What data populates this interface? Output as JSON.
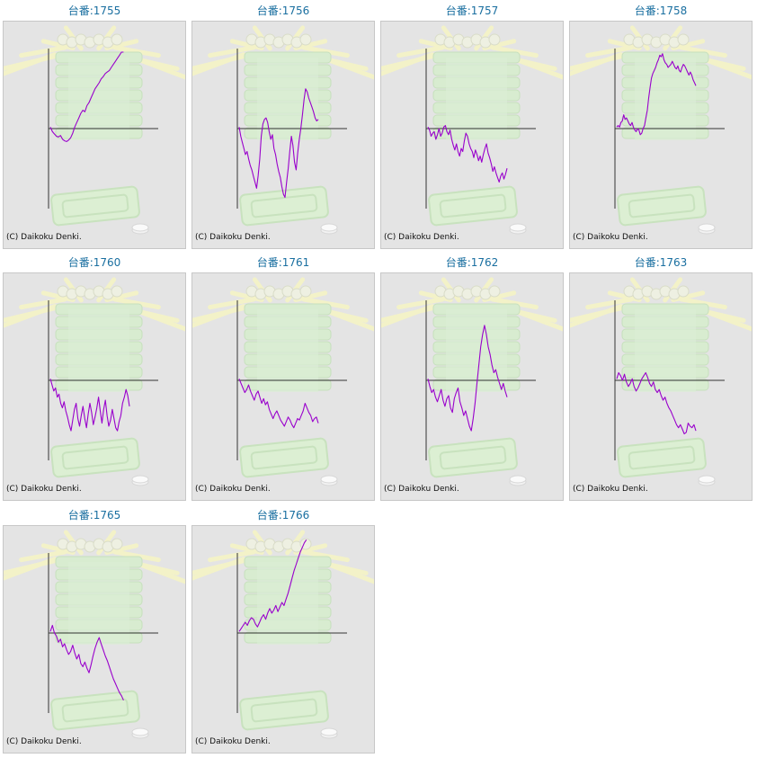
{
  "colors": {
    "title": "#1a6fa0",
    "line": "#9900cc",
    "frame_bg": "#e4e4e4",
    "frame_border": "#c7c7c7"
  },
  "copyright": "(C) Daikoku Denki.",
  "machines": [
    {
      "label": "台番:1755",
      "chart_data": {
        "type": "line",
        "values": [
          2,
          -4,
          -7,
          -10,
          -11,
          -9,
          -14,
          -16,
          -17,
          -15,
          -12,
          -6,
          2,
          8,
          14,
          20,
          24,
          22,
          30,
          34,
          40,
          46,
          52,
          56,
          60,
          65,
          68,
          72,
          74,
          76,
          80,
          84,
          88,
          92,
          96,
          100,
          100
        ]
      }
    },
    {
      "label": "台番:1756",
      "chart_data": {
        "type": "line",
        "values": [
          2,
          -10,
          -18,
          -26,
          -34,
          -30,
          -40,
          -48,
          -54,
          -62,
          -70,
          -78,
          -62,
          -40,
          -10,
          6,
          12,
          14,
          8,
          -4,
          -14,
          -8,
          -26,
          -34,
          -46,
          -56,
          -64,
          -76,
          -86,
          -90,
          -70,
          -52,
          -30,
          -10,
          -22,
          -44,
          -54,
          -32,
          -14,
          0,
          18,
          38,
          52,
          48,
          40,
          34,
          28,
          22,
          14,
          10,
          12
        ]
      }
    },
    {
      "label": "台番:1757",
      "chart_data": {
        "type": "line",
        "values": [
          2,
          -2,
          -10,
          -6,
          -4,
          -14,
          -8,
          0,
          -10,
          -6,
          2,
          4,
          -4,
          -8,
          -2,
          -14,
          -22,
          -28,
          -20,
          -30,
          -36,
          -26,
          -30,
          -16,
          -6,
          -10,
          -20,
          -26,
          -30,
          -38,
          -28,
          -34,
          -42,
          -36,
          -44,
          -34,
          -26,
          -20,
          -32,
          -38,
          -46,
          -56,
          -50,
          -58,
          -64,
          -70,
          -62,
          -58,
          -66,
          -60,
          -52
        ]
      }
    },
    {
      "label": "台番:1758",
      "chart_data": {
        "type": "line",
        "values": [
          2,
          4,
          2,
          8,
          10,
          18,
          12,
          14,
          10,
          6,
          4,
          8,
          2,
          -2,
          -4,
          0,
          -2,
          -8,
          -6,
          0,
          4,
          14,
          24,
          40,
          54,
          66,
          72,
          76,
          80,
          86,
          90,
          96,
          94,
          98,
          90,
          86,
          84,
          80,
          82,
          84,
          88,
          84,
          80,
          78,
          82,
          76,
          74,
          80,
          84,
          82,
          78,
          74,
          70,
          74,
          70,
          64,
          60,
          56
        ]
      }
    },
    {
      "label": "台番:1760",
      "chart_data": {
        "type": "line",
        "values": [
          2,
          -6,
          -14,
          -10,
          -22,
          -18,
          -30,
          -36,
          -28,
          -40,
          -48,
          -58,
          -66,
          -52,
          -38,
          -30,
          -50,
          -60,
          -46,
          -34,
          -50,
          -62,
          -44,
          -30,
          -42,
          -58,
          -48,
          -36,
          -22,
          -40,
          -56,
          -38,
          -26,
          -46,
          -60,
          -52,
          -38,
          -50,
          -62,
          -66,
          -54,
          -46,
          -30,
          -22,
          -12,
          -20,
          -34
        ]
      }
    },
    {
      "label": "台番:1761",
      "chart_data": {
        "type": "line",
        "values": [
          2,
          -4,
          -10,
          -16,
          -12,
          -6,
          -14,
          -20,
          -26,
          -18,
          -14,
          -22,
          -30,
          -24,
          -32,
          -28,
          -38,
          -44,
          -50,
          -44,
          -40,
          -46,
          -52,
          -56,
          -60,
          -54,
          -48,
          -52,
          -58,
          -62,
          -56,
          -50,
          -52,
          -46,
          -40,
          -30,
          -36,
          -42,
          -46,
          -54,
          -50,
          -48,
          -56
        ]
      }
    },
    {
      "label": "台番:1762",
      "chart_data": {
        "type": "line",
        "values": [
          2,
          -8,
          -16,
          -12,
          -22,
          -28,
          -20,
          -12,
          -26,
          -34,
          -24,
          -20,
          -36,
          -42,
          -24,
          -16,
          -10,
          -28,
          -36,
          -46,
          -40,
          -50,
          -60,
          -66,
          -50,
          -30,
          -4,
          20,
          44,
          60,
          72,
          60,
          44,
          34,
          20,
          10,
          14,
          4,
          -4,
          -12,
          -4,
          -14,
          -22
        ]
      }
    },
    {
      "label": "台番:1763",
      "chart_data": {
        "type": "line",
        "values": [
          2,
          10,
          6,
          0,
          8,
          -2,
          -8,
          -4,
          2,
          -8,
          -14,
          -10,
          -4,
          2,
          6,
          10,
          4,
          -4,
          -8,
          -2,
          -12,
          -16,
          -12,
          -20,
          -26,
          -22,
          -30,
          -36,
          -40,
          -46,
          -52,
          -58,
          -62,
          -58,
          -64,
          -70,
          -68,
          -56,
          -60,
          -62,
          -58,
          -66
        ]
      }
    },
    {
      "label": "台番:1765",
      "chart_data": {
        "type": "line",
        "values": [
          2,
          10,
          0,
          -4,
          -12,
          -8,
          -18,
          -14,
          -22,
          -28,
          -24,
          -16,
          -26,
          -34,
          -28,
          -40,
          -44,
          -38,
          -46,
          -52,
          -42,
          -30,
          -20,
          -12,
          -6,
          -14,
          -22,
          -30,
          -36,
          -44,
          -52,
          -60,
          -66,
          -72,
          -78,
          -82,
          -88
        ]
      }
    },
    {
      "label": "台番:1766",
      "chart_data": {
        "type": "line",
        "values": [
          2,
          6,
          10,
          14,
          10,
          16,
          20,
          18,
          12,
          8,
          14,
          20,
          24,
          18,
          26,
          32,
          26,
          30,
          36,
          28,
          34,
          40,
          36,
          44,
          52,
          62,
          72,
          82,
          90,
          98,
          106,
          112,
          118,
          122
        ]
      }
    }
  ]
}
